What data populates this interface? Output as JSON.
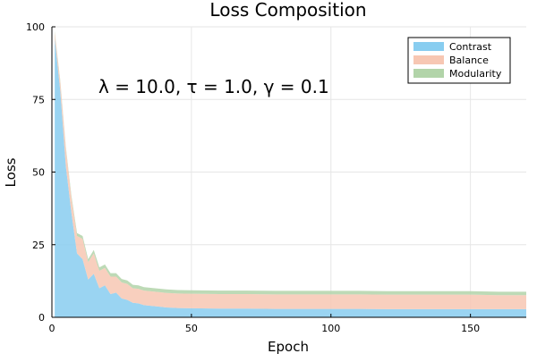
{
  "chart_data": {
    "type": "area",
    "title": "Loss Composition",
    "xlabel": "Epoch",
    "ylabel": "Loss",
    "xlim": [
      0,
      170
    ],
    "ylim": [
      0,
      100
    ],
    "xticks": [
      0,
      50,
      100,
      150
    ],
    "yticks": [
      0,
      25,
      50,
      75,
      100
    ],
    "grid": true,
    "legend_position": "top-right",
    "annotation": "λ = 10.0, τ = 1.0, γ = 0.1",
    "series": [
      {
        "name": "Contrast",
        "color": "#88cdf0",
        "x": [
          1,
          3,
          5,
          7,
          9,
          11,
          13,
          15,
          17,
          19,
          21,
          23,
          25,
          27,
          29,
          31,
          33,
          35,
          37,
          39,
          41,
          43,
          45,
          50,
          60,
          70,
          80,
          90,
          100,
          110,
          120,
          130,
          140,
          150,
          160,
          170
        ],
        "values": [
          96,
          78,
          52,
          36,
          22,
          20,
          13,
          15,
          10,
          11,
          8,
          8.5,
          6.5,
          6,
          5,
          4.8,
          4.2,
          4.0,
          3.8,
          3.6,
          3.4,
          3.3,
          3.2,
          3.1,
          3.0,
          3.0,
          2.9,
          2.9,
          2.9,
          2.9,
          2.8,
          2.8,
          2.8,
          2.8,
          2.8,
          2.8
        ]
      },
      {
        "name": "Balance",
        "color": "#f7c7b3",
        "x": [
          1,
          3,
          5,
          7,
          9,
          11,
          13,
          15,
          17,
          19,
          21,
          23,
          25,
          27,
          29,
          31,
          33,
          35,
          37,
          39,
          41,
          43,
          45,
          50,
          60,
          70,
          80,
          90,
          100,
          110,
          120,
          130,
          140,
          150,
          160,
          170
        ],
        "values": [
          2,
          3,
          6,
          5,
          6,
          7,
          6,
          7,
          6,
          6,
          6,
          5.5,
          5.5,
          5.5,
          5,
          5,
          5,
          5,
          5,
          5,
          5,
          5,
          5,
          5,
          5,
          5,
          5,
          5,
          5,
          5,
          5,
          5,
          5,
          5,
          4.8,
          4.8
        ]
      },
      {
        "name": "Modularity",
        "color": "#b2d4a9",
        "x": [
          1,
          3,
          5,
          7,
          9,
          11,
          13,
          15,
          17,
          19,
          21,
          23,
          25,
          27,
          29,
          31,
          33,
          35,
          37,
          39,
          41,
          43,
          45,
          50,
          60,
          70,
          80,
          90,
          100,
          110,
          120,
          130,
          140,
          150,
          160,
          170
        ],
        "values": [
          0.5,
          0.5,
          0.6,
          0.8,
          1,
          1,
          1,
          1.2,
          1.2,
          1.2,
          1.2,
          1.2,
          1.2,
          1.2,
          1.2,
          1.2,
          1.2,
          1.2,
          1.2,
          1.2,
          1.2,
          1.2,
          1.2,
          1.2,
          1.2,
          1.2,
          1.2,
          1.2,
          1.2,
          1.2,
          1.2,
          1.2,
          1.2,
          1.2,
          1.2,
          1.2
        ]
      }
    ]
  }
}
